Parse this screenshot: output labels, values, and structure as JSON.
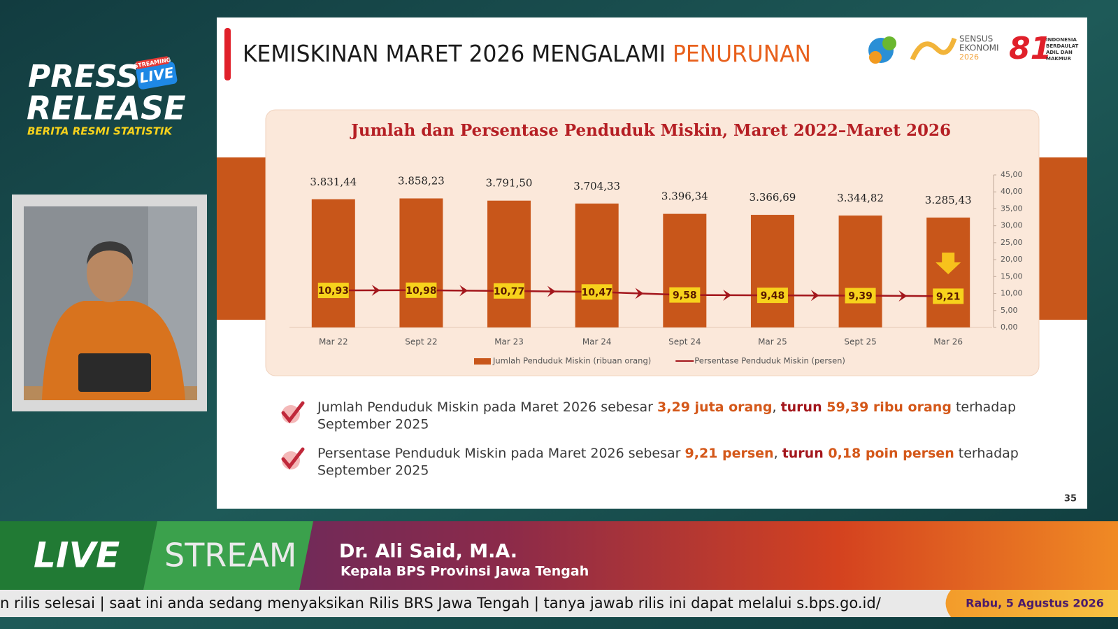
{
  "branding": {
    "press": "PRESS",
    "release": "RELEASE",
    "live_badge": "LIVE",
    "streaming": "STREAMING",
    "tagline": "BERITA RESMI STATISTIK"
  },
  "slide": {
    "title": "KEMISKINAN MARET 2026 MENGALAMI ",
    "title_highlight": "PENURUNAN",
    "logos": {
      "sensus": [
        "SENSUS",
        "EKONOMI",
        "2026"
      ],
      "anniversary": "81",
      "motto": [
        "INDONESIA",
        "BERDAULAT",
        "ADIL DAN",
        "MAKMUR"
      ]
    },
    "bullets": [
      {
        "segments": [
          {
            "text": "Jumlah Penduduk Miskin pada Maret 2026 sebesar ",
            "color": "#3a3a3a"
          },
          {
            "text": "3,29 juta orang",
            "color": "#d4581a"
          },
          {
            "text": ", ",
            "color": "#3a3a3a"
          },
          {
            "text": "turun ",
            "color": "#a3161c"
          },
          {
            "text": "59,39 ribu orang",
            "color": "#d4581a"
          },
          {
            "text": " terhadap",
            "color": "#3a3a3a"
          }
        ],
        "continuation": "September 2025"
      },
      {
        "segments": [
          {
            "text": "Persentase Penduduk Miskin pada Maret 2026 sebesar ",
            "color": "#3a3a3a"
          },
          {
            "text": "9,21 persen",
            "color": "#d4581a"
          },
          {
            "text": ", ",
            "color": "#3a3a3a"
          },
          {
            "text": "turun ",
            "color": "#a3161c"
          },
          {
            "text": "0,18 poin persen",
            "color": "#d4581a"
          },
          {
            "text": " terhadap",
            "color": "#3a3a3a"
          }
        ],
        "continuation": "September 2025"
      }
    ],
    "page_number": "35"
  },
  "chart_data": {
    "type": "bar",
    "title": "Jumlah dan Persentase Penduduk Miskin, Maret 2022–Maret 2026",
    "categories": [
      "Mar 22",
      "Sept 22",
      "Mar 23",
      "Mar 24",
      "Sept 24",
      "Mar 25",
      "Sept 25",
      "Mar 26"
    ],
    "series": [
      {
        "name": "Jumlah Penduduk Miskin (ribuan orang)",
        "color": "#c8561a",
        "values": [
          3831.44,
          3858.23,
          3791.5,
          3704.33,
          3396.34,
          3366.69,
          3344.82,
          3285.43
        ],
        "value_labels": [
          "3.831,44",
          "3.858,23",
          "3.791,50",
          "3.704,33",
          "3.396,34",
          "3.366,69",
          "3.344,82",
          "3.285,43"
        ]
      },
      {
        "name": "Persentase Penduduk Miskin (persen)",
        "color": "#a3161c",
        "type": "line",
        "axis": "y2",
        "values": [
          10.93,
          10.98,
          10.77,
          10.47,
          9.58,
          9.48,
          9.39,
          9.21
        ],
        "value_labels": [
          "10,93",
          "10,98",
          "10,77",
          "10,47",
          "9,58",
          "9,48",
          "9,39",
          "9,21"
        ]
      }
    ],
    "ylim": [
      0,
      4560
    ],
    "y2lim": [
      0,
      45
    ],
    "y2ticks": [
      {
        "value": 0,
        "label": "0,00"
      },
      {
        "value": 5,
        "label": "5,00"
      },
      {
        "value": 10,
        "label": "10,00"
      },
      {
        "value": 15,
        "label": "15,00"
      },
      {
        "value": 20,
        "label": "20,00"
      },
      {
        "value": 25,
        "label": "25,00"
      },
      {
        "value": 30,
        "label": "30,00"
      },
      {
        "value": 35,
        "label": "35,00"
      },
      {
        "value": 40,
        "label": "40,00"
      },
      {
        "value": 45,
        "label": "45,00"
      }
    ],
    "legend": "bottom"
  },
  "lower_third": {
    "live": "LIVE",
    "stream": "STREAM",
    "name": "Dr. Ali Said, M.A.",
    "position": "Kepala BPS Provinsi Jawa Tengah"
  },
  "ticker": {
    "text": "n rilis selesai   |   saat ini anda sedang menyaksikan Rilis BRS Jawa Tengah   |   tanya jawab rilis ini dapat melalui s.bps.go.id/",
    "date": "Rabu, 5 Agustus 2026"
  }
}
